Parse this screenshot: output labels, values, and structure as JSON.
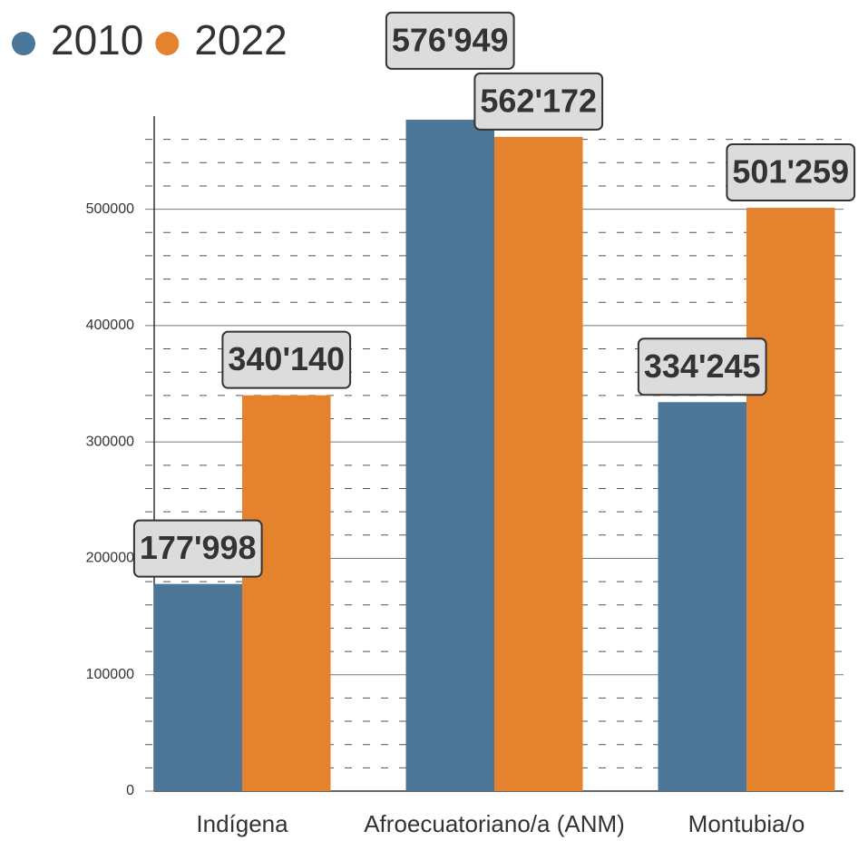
{
  "chart_data": {
    "type": "bar",
    "categories": [
      "Indígena",
      "Afroecuatoriano/a (ANM)",
      "Montubia/o"
    ],
    "series": [
      {
        "name": "2010",
        "color": "#4d7799",
        "values": [
          177998,
          576949,
          334245
        ],
        "value_labels": [
          "177'998",
          "576'949",
          "334'245"
        ]
      },
      {
        "name": "2022",
        "color": "#e5822e",
        "values": [
          340140,
          562172,
          501259
        ],
        "value_labels": [
          "340'140",
          "562'172",
          "501'259"
        ]
      }
    ],
    "ylim": [
      0,
      580000
    ],
    "yticks": [
      0,
      100000,
      200000,
      300000,
      400000,
      500000
    ],
    "minor_yticks": [
      20000,
      40000,
      60000,
      80000,
      120000,
      140000,
      160000,
      180000,
      220000,
      240000,
      260000,
      280000,
      320000,
      340000,
      360000,
      380000,
      420000,
      440000,
      460000,
      480000,
      520000,
      540000,
      560000
    ],
    "grid": true,
    "legend": "top-left"
  }
}
